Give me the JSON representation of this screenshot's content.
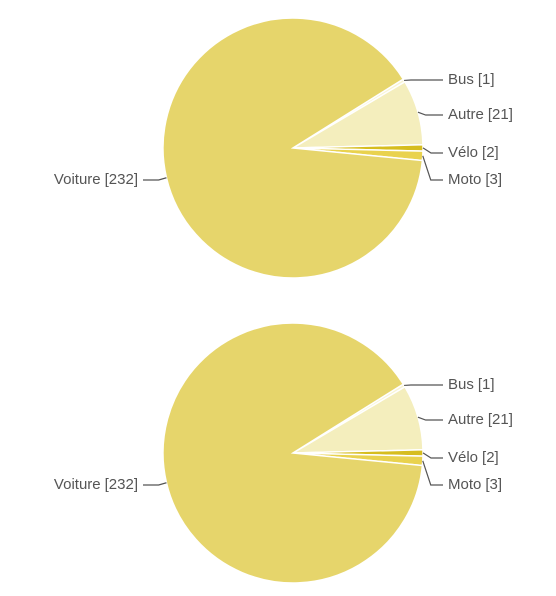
{
  "chart_data": [
    {
      "type": "pie",
      "categories": [
        "Bus",
        "Autre",
        "Vélo",
        "Moto",
        "Voiture"
      ],
      "values": [
        1,
        21,
        2,
        3,
        232
      ],
      "value_labels": [
        "[1]",
        "[21]",
        "[2]",
        "[3]",
        "[232]"
      ],
      "colors": [
        "#f8f4d2",
        "#f4eebd",
        "#d6bd1e",
        "#e9d24e",
        "#e6d56b"
      ]
    },
    {
      "type": "pie",
      "categories": [
        "Bus",
        "Autre",
        "Vélo",
        "Moto",
        "Voiture"
      ],
      "values": [
        1,
        21,
        2,
        3,
        232
      ],
      "value_labels": [
        "[1]",
        "[21]",
        "[2]",
        "[3]",
        "[232]"
      ],
      "colors": [
        "#f8f4d2",
        "#f4eebd",
        "#d6bd1e",
        "#e9d24e",
        "#e6d56b"
      ]
    }
  ]
}
